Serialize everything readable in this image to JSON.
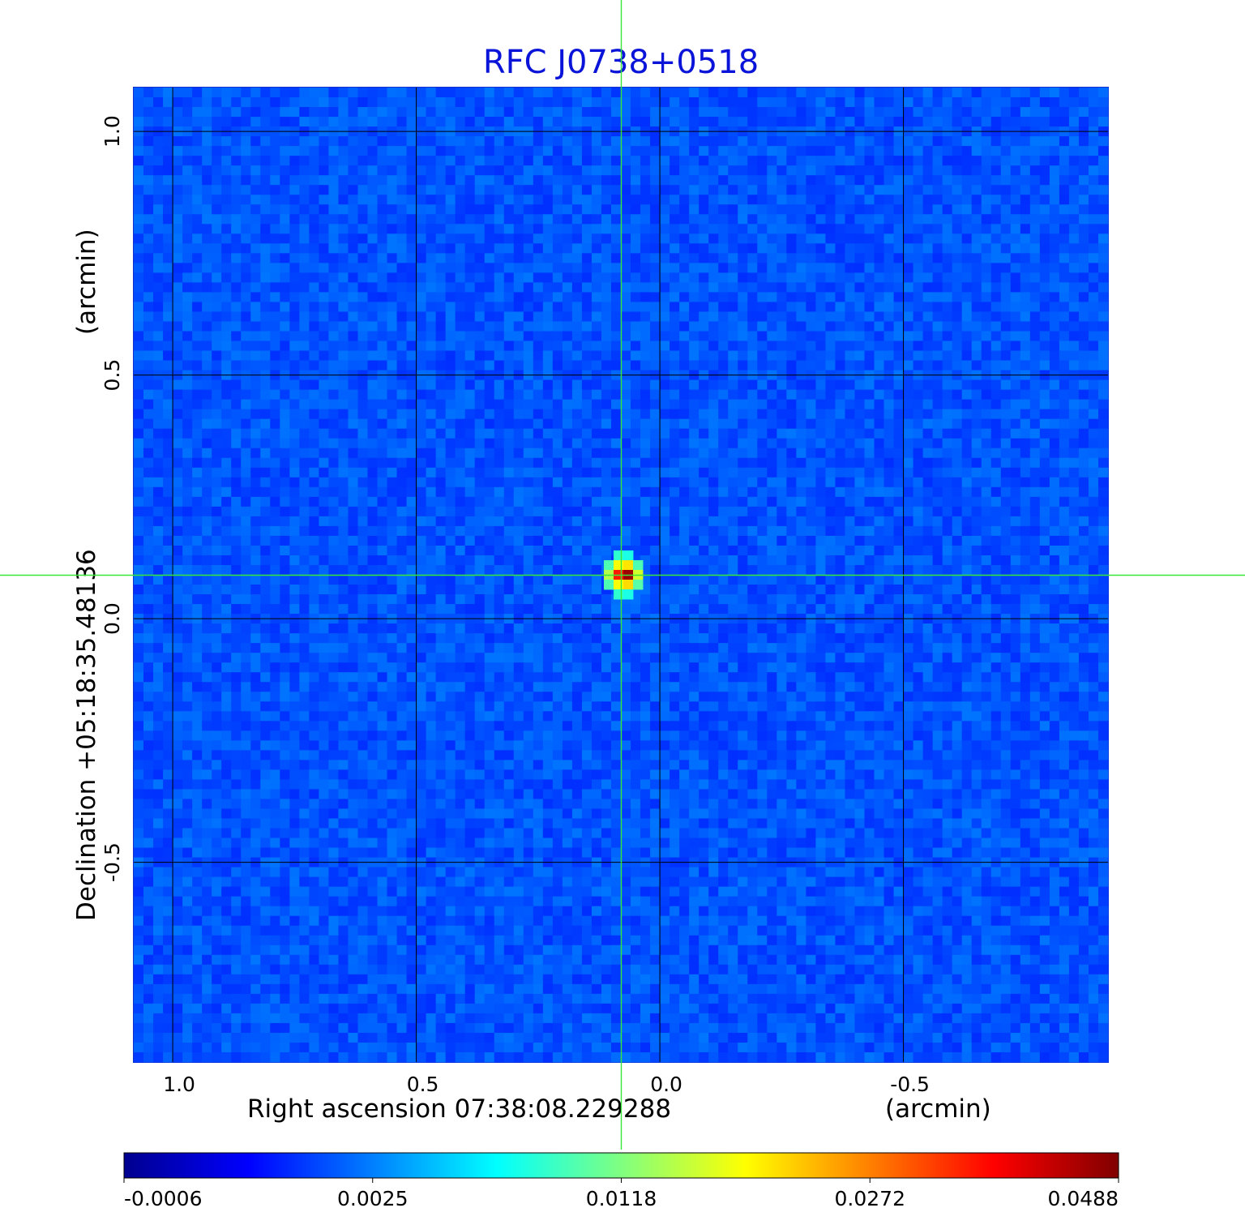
{
  "chart_data": {
    "type": "heatmap",
    "title": "RFC J0738+0518",
    "xlabel": "Right ascension  07:38:08.229288",
    "xunit": "(arcmin)",
    "ylabel": "Declination  +05:18:35.48136",
    "yunit": "(arcmin)",
    "x_axis_inverted": true,
    "xlim": [
      1.08,
      -0.92
    ],
    "ylim": [
      -0.91,
      1.09
    ],
    "x_ticks": [
      {
        "value": 1.0,
        "label": "1.0"
      },
      {
        "value": 0.5,
        "label": "0.5"
      },
      {
        "value": 0.0,
        "label": "0.0"
      },
      {
        "value": -0.5,
        "label": "-0.5"
      }
    ],
    "y_ticks": [
      {
        "value": 1.0,
        "label": "1.0"
      },
      {
        "value": 0.5,
        "label": "0.5"
      },
      {
        "value": 0.0,
        "label": "0.0"
      },
      {
        "value": -0.5,
        "label": "-0.5"
      }
    ],
    "grid": true,
    "crosshair": {
      "x": 0.075,
      "y": 0.09
    },
    "source_peak": {
      "x": 0.075,
      "y": 0.09,
      "value": 0.0488
    },
    "background_level": 0.001,
    "colormap": "jet",
    "colorbar": {
      "min": -0.0006,
      "max": 0.0488,
      "ticks": [
        "-0.0006",
        "0.0025",
        "0.0118",
        "0.0272",
        "0.0488"
      ]
    },
    "colors": {
      "title": "#0a14d8",
      "grid": "#000000",
      "crosshair": "#38e838"
    }
  }
}
